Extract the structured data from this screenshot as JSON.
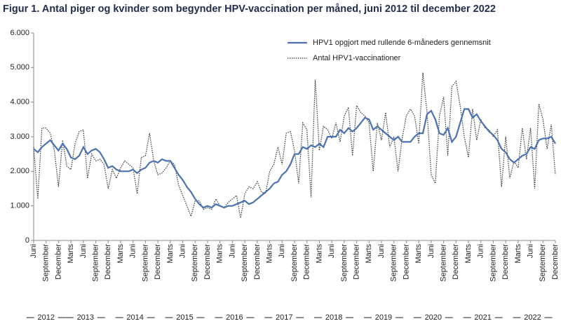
{
  "chart_data": {
    "type": "line",
    "title": "Figur 1. Antal piger og kvinder som begynder HPV-vaccination per måned, juni 2012 til december 2022",
    "categories": [
      "Juni",
      null,
      null,
      "September",
      null,
      null,
      "December",
      null,
      null,
      "Marts",
      null,
      null,
      "Juni",
      null,
      null,
      "September",
      null,
      null,
      "December",
      null,
      null,
      "Marts",
      null,
      null,
      "Juni",
      null,
      null,
      "September",
      null,
      null,
      "December",
      null,
      null,
      "Marts",
      null,
      null,
      "Juni",
      null,
      null,
      "September",
      null,
      null,
      "December",
      null,
      null,
      "Marts",
      null,
      null,
      "Juni",
      null,
      null,
      "September",
      null,
      null,
      "December",
      null,
      null,
      "Marts",
      null,
      null,
      "Juni",
      null,
      null,
      "September",
      null,
      null,
      "December",
      null,
      null,
      "Marts",
      null,
      null,
      "Juni",
      null,
      null,
      "September",
      null,
      null,
      "December",
      null,
      null,
      "Marts",
      null,
      null,
      "Juni",
      null,
      null,
      "September",
      null,
      null,
      "December",
      null,
      null,
      "Marts",
      null,
      null,
      "Juni",
      null,
      null,
      "September",
      null,
      null,
      "December",
      null,
      null,
      "Marts",
      null,
      null,
      "Juni",
      null,
      null,
      "September",
      null,
      null,
      "December",
      null,
      null,
      "Marts",
      null,
      null,
      "Juni",
      null,
      null,
      "September",
      null,
      null,
      "December"
    ],
    "x_group_labels": [
      "2012",
      "2013",
      "2014",
      "2015",
      "2016",
      "2017",
      "2018",
      "2019",
      "2020",
      "2021",
      "2022"
    ],
    "series": [
      {
        "name": "HPV1 opgjort med rullende 6-måneders gennemsnit",
        "color": "#4a72b0",
        "style": "solid",
        "values": [
          2650,
          2550,
          2700,
          2800,
          2900,
          2750,
          2600,
          2800,
          2650,
          2400,
          2350,
          2450,
          2700,
          2500,
          2600,
          2650,
          2550,
          2350,
          2100,
          2150,
          2050,
          2000,
          2000,
          2000,
          2050,
          1950,
          2050,
          2100,
          2250,
          2300,
          2250,
          2350,
          2300,
          2300,
          2100,
          1900,
          1750,
          1550,
          1400,
          1200,
          1050,
          950,
          1000,
          950,
          1050,
          1000,
          950,
          1000,
          1000,
          1050,
          1100,
          1150,
          1050,
          1100,
          1200,
          1300,
          1400,
          1500,
          1650,
          1700,
          1900,
          2000,
          2200,
          2500,
          2500,
          2700,
          2650,
          2750,
          2700,
          2800,
          2700,
          3000,
          3000,
          3000,
          3200,
          3100,
          3250,
          3150,
          3250,
          3400,
          3550,
          3500,
          3200,
          3300,
          3200,
          3100,
          3000,
          2900,
          3000,
          2850,
          2850,
          2850,
          3000,
          3100,
          3100,
          3650,
          3750,
          3500,
          3100,
          3050,
          3250,
          2850,
          3000,
          3400,
          3800,
          3800,
          3550,
          3650,
          3450,
          3300,
          3150,
          3050,
          2900,
          2650,
          2550,
          2350,
          2250,
          2350,
          2450,
          2500,
          2700,
          2650,
          2900,
          2950,
          2950,
          3000,
          2800
        ]
      },
      {
        "name": "Antal HPV1-vaccinationer",
        "color": "#333333",
        "style": "dotted",
        "values": [
          2700,
          1200,
          3250,
          3250,
          3100,
          2600,
          1550,
          2900,
          2150,
          2050,
          2800,
          3150,
          3200,
          1800,
          2500,
          2300,
          2350,
          2200,
          1500,
          2050,
          1800,
          2100,
          2300,
          2200,
          2100,
          1350,
          2400,
          2450,
          3100,
          2300,
          1900,
          1950,
          2100,
          2300,
          2200,
          1600,
          1300,
          1000,
          700,
          1150,
          1150,
          900,
          950,
          900,
          1200,
          1000,
          950,
          1100,
          1200,
          1300,
          650,
          1350,
          1550,
          1500,
          1700,
          1400,
          1350,
          2000,
          2200,
          2700,
          2200,
          3100,
          3150,
          2600,
          1650,
          3400,
          3200,
          1250,
          4650,
          2600,
          3300,
          3200,
          2950,
          3400,
          2850,
          3600,
          3850,
          2450,
          3900,
          3700,
          3600,
          3400,
          2000,
          3400,
          2900,
          3700,
          2700,
          3000,
          2000,
          2950,
          3600,
          3800,
          3600,
          2800,
          4850,
          3700,
          1900,
          1650,
          3600,
          4150,
          2450,
          4450,
          4600,
          3900,
          3000,
          2400,
          3800,
          2900,
          3500,
          3250,
          3200,
          3000,
          3200,
          1550,
          3000,
          1800,
          2300,
          2100,
          3250,
          2350,
          3250,
          1500,
          3950,
          3500,
          2650,
          3350,
          1900
        ]
      }
    ],
    "ylim": [
      0,
      6000
    ],
    "yticks": [
      0,
      {
        "value": 1000,
        "label": "1.000"
      },
      {
        "value": 2000,
        "label": "2.000"
      },
      {
        "value": 3000,
        "label": "3.000"
      },
      {
        "value": 4000,
        "label": "4.000"
      },
      {
        "value": 5000,
        "label": "5.000"
      },
      {
        "value": 6000,
        "label": "6.000"
      }
    ],
    "grid": false,
    "legend": "top-right"
  }
}
